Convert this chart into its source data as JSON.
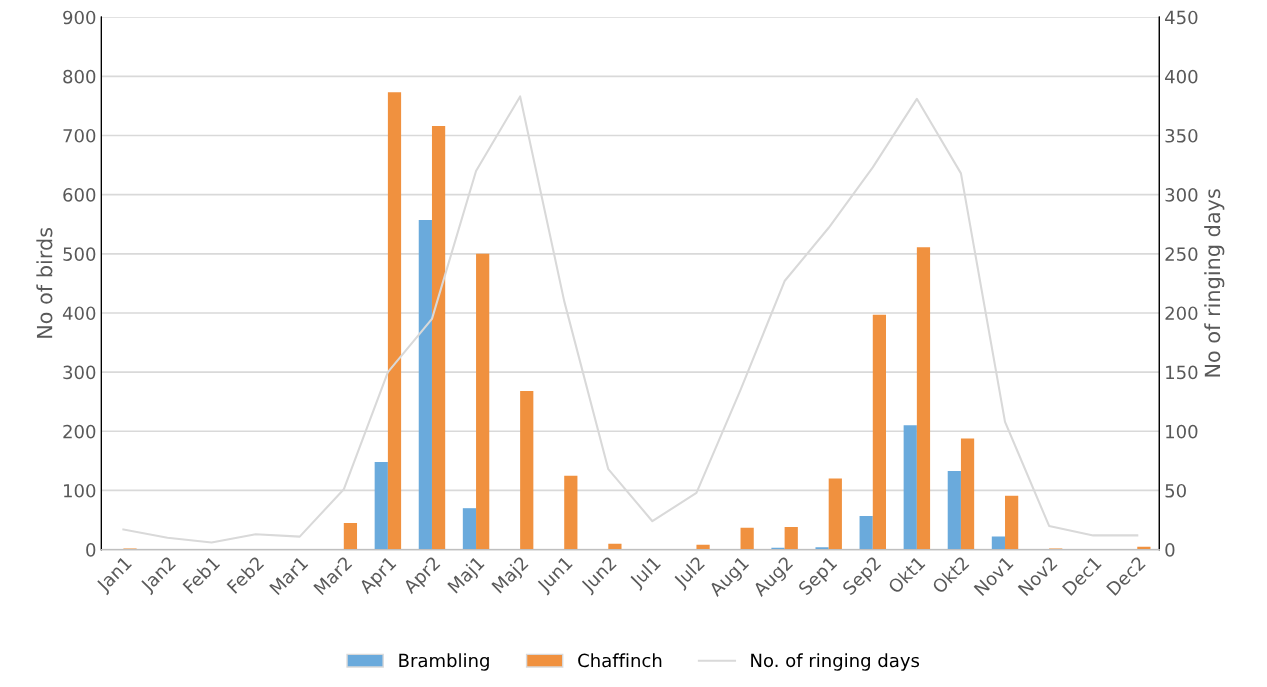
{
  "chart_data": {
    "type": "bar",
    "ylabel": "No of birds",
    "y2label": "No of ringing days",
    "categories": [
      "Jan1",
      "Jan2",
      "Feb1",
      "Feb2",
      "Mar1",
      "Mar2",
      "Apr1",
      "Apr2",
      "Maj1",
      "Maj2",
      "Jun1",
      "Jun2",
      "Jul1",
      "Jul2",
      "Aug1",
      "Aug2",
      "Sep1",
      "Sep2",
      "Okt1",
      "Okt2",
      "Nov1",
      "Nov2",
      "Dec1",
      "Dec2"
    ],
    "series": [
      {
        "name": "Brambling",
        "color": "#6aaadc",
        "values": [
          0,
          0,
          0,
          0,
          0,
          0,
          148,
          557,
          70,
          0,
          0,
          0,
          0,
          0,
          0,
          3,
          4,
          57,
          210,
          133,
          22,
          0,
          0,
          0
        ]
      },
      {
        "name": "Chaffinch",
        "color": "#f0913f",
        "values": [
          2,
          1,
          0,
          0,
          0,
          45,
          773,
          716,
          500,
          268,
          125,
          10,
          0,
          8,
          37,
          38,
          120,
          397,
          511,
          188,
          91,
          2,
          0,
          5
        ]
      },
      {
        "name": "No. of ringing days",
        "type": "line",
        "axis": "y2",
        "color": "#d9d9d9",
        "values": [
          17,
          10,
          6,
          13,
          11,
          51,
          150,
          195,
          320,
          383,
          210,
          68,
          24,
          48,
          135,
          227,
          272,
          323,
          381,
          318,
          108,
          20,
          12,
          12
        ]
      }
    ],
    "ylim": [
      0,
      900
    ],
    "yticks": [
      0,
      100,
      200,
      300,
      400,
      500,
      600,
      700,
      800,
      900
    ],
    "y2lim": [
      0,
      450
    ],
    "y2ticks": [
      0,
      50,
      100,
      150,
      200,
      250,
      300,
      350,
      400,
      450
    ],
    "grid": "y",
    "legend": "bottom"
  }
}
